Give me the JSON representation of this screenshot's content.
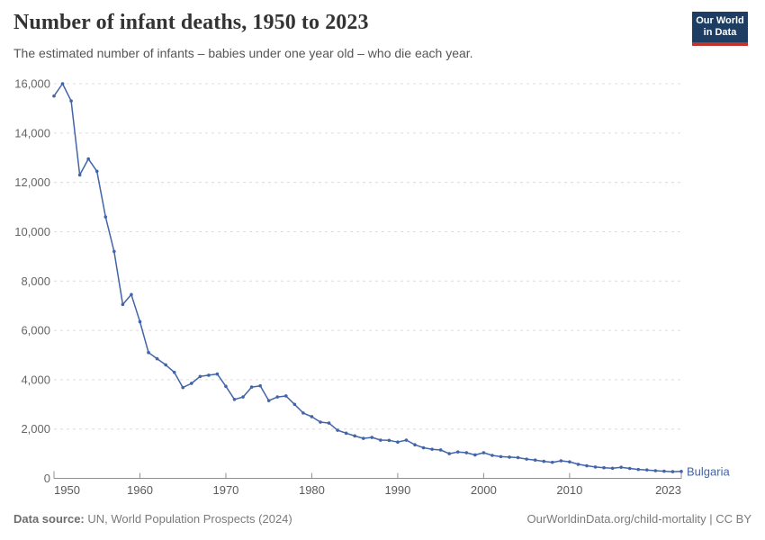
{
  "header": {
    "title": "Number of infant deaths, 1950 to 2023",
    "subtitle": "The estimated number of infants – babies under one year old – who die each year."
  },
  "logo": {
    "line1": "Our World",
    "line2": "in Data",
    "bg_color": "#1d3d63",
    "accent_color": "#c0362c",
    "text_color": "#ffffff"
  },
  "chart_data": {
    "type": "line",
    "title": "Number of infant deaths, 1950 to 2023",
    "xlabel": "",
    "ylabel": "",
    "xlim": [
      1950,
      2023
    ],
    "ylim": [
      0,
      16000
    ],
    "grid": "horizontal-dashed",
    "legend_position": "end-of-line-label",
    "x_ticks": [
      1950,
      1960,
      1970,
      1980,
      1990,
      2000,
      2010,
      2023
    ],
    "y_ticks": [
      0,
      2000,
      4000,
      6000,
      8000,
      10000,
      12000,
      14000,
      16000
    ],
    "y_tick_labels": [
      "0",
      "2,000",
      "4,000",
      "6,000",
      "8,000",
      "10,000",
      "12,000",
      "14,000",
      "16,000"
    ],
    "x": [
      1950,
      1951,
      1952,
      1953,
      1954,
      1955,
      1956,
      1957,
      1958,
      1959,
      1960,
      1961,
      1962,
      1963,
      1964,
      1965,
      1966,
      1967,
      1968,
      1969,
      1970,
      1971,
      1972,
      1973,
      1974,
      1975,
      1976,
      1977,
      1978,
      1979,
      1980,
      1981,
      1982,
      1983,
      1984,
      1985,
      1986,
      1987,
      1988,
      1989,
      1990,
      1991,
      1992,
      1993,
      1994,
      1995,
      1996,
      1997,
      1998,
      1999,
      2000,
      2001,
      2002,
      2003,
      2004,
      2005,
      2006,
      2007,
      2008,
      2009,
      2010,
      2011,
      2012,
      2013,
      2014,
      2015,
      2016,
      2017,
      2018,
      2019,
      2020,
      2021,
      2022,
      2023
    ],
    "series": [
      {
        "name": "Bulgaria",
        "color": "#4264a8",
        "values": [
          15500,
          16000,
          15300,
          12300,
          12950,
          12450,
          10600,
          9200,
          7050,
          7450,
          6350,
          5100,
          4850,
          4600,
          4300,
          3680,
          3850,
          4130,
          4180,
          4230,
          3730,
          3200,
          3300,
          3700,
          3750,
          3150,
          3300,
          3340,
          3000,
          2650,
          2500,
          2280,
          2240,
          1950,
          1830,
          1720,
          1620,
          1660,
          1550,
          1540,
          1470,
          1550,
          1360,
          1240,
          1180,
          1150,
          1000,
          1070,
          1040,
          950,
          1040,
          930,
          880,
          860,
          840,
          780,
          740,
          690,
          650,
          710,
          670,
          570,
          510,
          460,
          430,
          410,
          450,
          400,
          360,
          340,
          310,
          290,
          270,
          280
        ]
      }
    ],
    "entity_label": "Bulgaria",
    "colors": {
      "line": "#4264a8",
      "gridline": "#dcdcdc",
      "axis": "#8f8f8f",
      "tick_label": "#666666"
    }
  },
  "footer": {
    "source_label": "Data source:",
    "source_text": " UN, World Population Prospects (2024)",
    "link_text": "OurWorldinData.org/child-mortality",
    "license_text": " | CC BY"
  }
}
